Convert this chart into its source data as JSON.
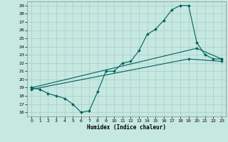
{
  "xlabel": "Humidex (Indice chaleur)",
  "xlim": [
    -0.5,
    23.5
  ],
  "ylim": [
    15.5,
    29.5
  ],
  "xticks": [
    0,
    1,
    2,
    3,
    4,
    5,
    6,
    7,
    8,
    9,
    10,
    11,
    12,
    13,
    14,
    15,
    16,
    17,
    18,
    19,
    20,
    21,
    22,
    23
  ],
  "yticks": [
    16,
    17,
    18,
    19,
    20,
    21,
    22,
    23,
    24,
    25,
    26,
    27,
    28,
    29
  ],
  "bg_color": "#c5e8e0",
  "grid_color": "#a8cec8",
  "line_color": "#006060",
  "main_x": [
    0,
    1,
    2,
    3,
    4,
    5,
    6,
    7,
    8,
    9,
    10,
    11,
    12,
    13,
    14,
    15,
    16,
    17,
    18,
    19,
    20,
    21,
    22,
    23
  ],
  "main_y": [
    19,
    18.8,
    18.3,
    18.0,
    17.7,
    17.0,
    16.0,
    16.2,
    18.5,
    21.0,
    21.0,
    22.0,
    22.2,
    23.5,
    25.5,
    26.1,
    27.2,
    28.5,
    29.0,
    29.0,
    24.5,
    23.0,
    22.5,
    22.5
  ],
  "line2_x": [
    0,
    20,
    23
  ],
  "line2_y": [
    19.0,
    23.8,
    22.5
  ],
  "line3_x": [
    0,
    19,
    23
  ],
  "line3_y": [
    18.8,
    22.5,
    22.2
  ]
}
